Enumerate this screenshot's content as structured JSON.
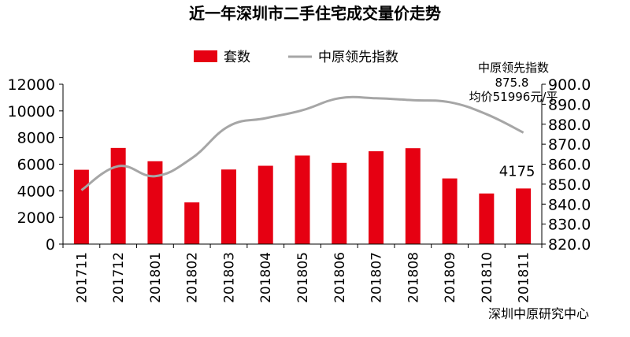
{
  "chart_data": {
    "type": "bar",
    "title": "近一年深圳市二手住宅成交量价走势",
    "categories": [
      "201711",
      "201712",
      "201801",
      "201802",
      "201803",
      "201804",
      "201805",
      "201806",
      "201807",
      "201808",
      "201809",
      "201810",
      "201811"
    ],
    "series": [
      {
        "name": "套数",
        "type": "bar",
        "axis": "left",
        "color": "#e60012",
        "values": [
          5580,
          7220,
          6220,
          3130,
          5600,
          5880,
          6650,
          6100,
          6970,
          7200,
          4930,
          3800,
          4175
        ]
      },
      {
        "name": "中原领先指数",
        "type": "line",
        "axis": "right",
        "color": "#a6a6a6",
        "values": [
          847.0,
          859.0,
          854.0,
          863.0,
          879.0,
          883.0,
          887.0,
          893.0,
          893.0,
          892.0,
          891.0,
          885.0,
          875.8
        ]
      }
    ],
    "y_left": {
      "ylim": [
        0,
        12000
      ],
      "ticks": [
        "0",
        "2000",
        "4000",
        "6000",
        "8000",
        "10000",
        "12000"
      ]
    },
    "y_right": {
      "ylim": [
        820,
        900
      ],
      "ticks": [
        "820.0",
        "830.0",
        "840.0",
        "850.0",
        "860.0",
        "870.0",
        "880.0",
        "890.0",
        "900.0"
      ]
    },
    "grid": false,
    "legend_position": "top",
    "annotations": {
      "last_bar_value": "4175",
      "index_label_lines": [
        "中原领先指数",
        "875.8",
        "均价51996元/平"
      ]
    },
    "source": "深圳中原研究中心"
  }
}
